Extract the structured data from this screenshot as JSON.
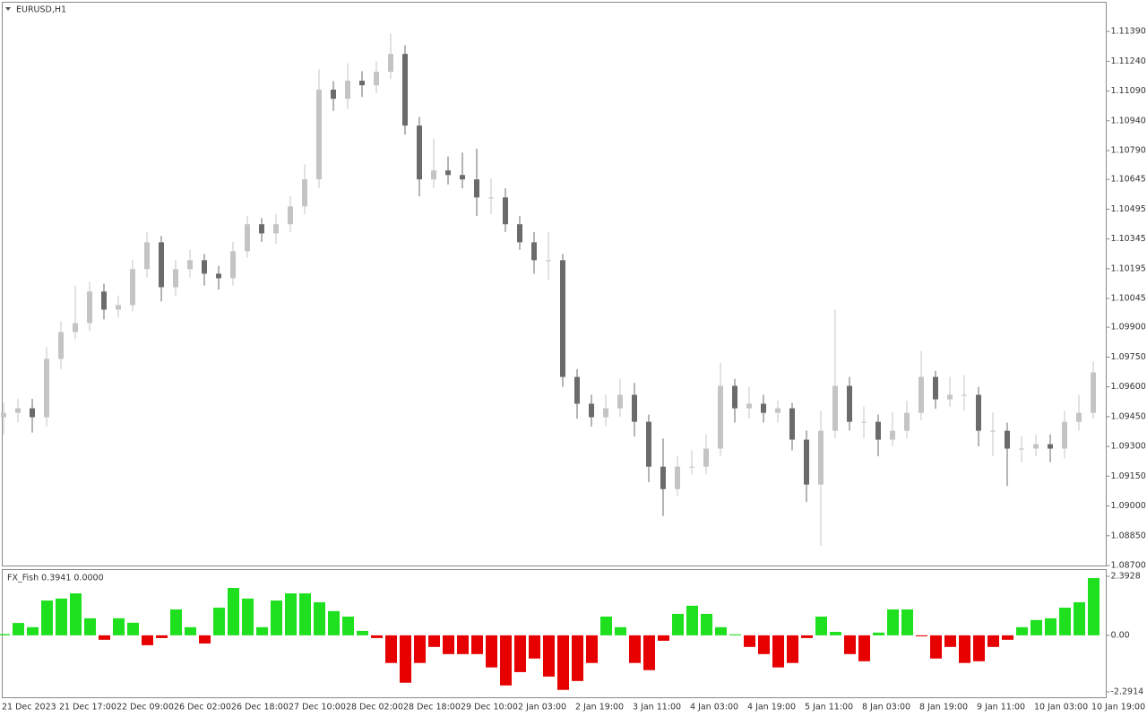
{
  "chart_data": [
    {
      "type": "candlestick",
      "title": "EURUSD,H1",
      "categories": [
        "21 Dec 2023",
        null,
        null,
        null,
        "21 Dec 17:00",
        null,
        null,
        null,
        "22 Dec 09:00",
        null,
        null,
        null,
        "26 Dec 02:00",
        null,
        null,
        null,
        "26 Dec 18:00",
        null,
        null,
        null,
        "27 Dec 10:00",
        null,
        null,
        null,
        "28 Dec 02:00",
        null,
        null,
        null,
        "28 Dec 18:00",
        null,
        null,
        null,
        "29 Dec 10:00",
        null,
        null,
        null,
        "2 Jan 03:00",
        null,
        null,
        null,
        "2 Jan 19:00",
        null,
        null,
        null,
        "3 Jan 11:00",
        null,
        null,
        null,
        "4 Jan 03:00",
        null,
        null,
        null,
        "4 Jan 19:00",
        null,
        null,
        null,
        "5 Jan 11:00",
        null,
        null,
        null,
        "8 Jan 03:00",
        null,
        null,
        null,
        "8 Jan 19:00",
        null,
        null,
        null,
        "9 Jan 11:00",
        null,
        null,
        null,
        "10 Jan 03:00",
        null,
        null,
        null,
        "10 Jan 19:00"
      ],
      "open": [
        1.09447,
        1.09469,
        1.09492,
        1.09447,
        1.09741,
        1.09876,
        1.09921,
        1.1008,
        1.09989,
        1.10012,
        1.10193,
        1.10328,
        1.10102,
        1.10193,
        1.10238,
        1.1017,
        1.10147,
        1.10283,
        1.10419,
        1.10373,
        1.10419,
        1.10509,
        1.10645,
        1.11097,
        1.11051,
        1.11142,
        1.11119,
        1.11187,
        1.11277,
        1.10916,
        1.10645,
        1.1069,
        1.10667,
        1.10645,
        1.10554,
        1.10554,
        1.10419,
        1.10328,
        1.10238,
        1.10238,
        1.0965,
        1.09515,
        1.09447,
        1.09492,
        1.0956,
        1.09424,
        1.09198,
        1.09085,
        1.09198,
        1.09198,
        1.09289,
        1.09605,
        1.09492,
        1.09515,
        1.09469,
        1.09492,
        1.09334,
        1.09108,
        1.09379,
        1.09605,
        1.09424,
        1.09424,
        1.09334,
        1.09379,
        1.09469,
        1.0965,
        1.09537,
        1.0956,
        1.0956,
        1.09379,
        1.09379,
        1.09289,
        1.09289,
        1.09311,
        1.09289,
        1.09424,
        1.09469
      ],
      "high": [
        1.0952,
        1.0954,
        1.0954,
        1.098,
        1.0993,
        1.1011,
        1.1013,
        1.1012,
        1.1006,
        1.1024,
        1.1038,
        1.1036,
        1.1024,
        1.1029,
        1.1027,
        1.1021,
        1.1033,
        1.1046,
        1.1045,
        1.1047,
        1.1056,
        1.1072,
        1.112,
        1.1114,
        1.1123,
        1.1119,
        1.1124,
        1.1138,
        1.1132,
        1.1096,
        1.1085,
        1.1076,
        1.1078,
        1.108,
        1.1065,
        1.106,
        1.1046,
        1.1038,
        1.1038,
        1.1027,
        1.0969,
        1.0956,
        1.0956,
        1.0964,
        1.0962,
        1.0946,
        1.0934,
        1.0925,
        1.0928,
        1.0936,
        1.0972,
        1.0964,
        1.096,
        1.0956,
        1.0953,
        1.0952,
        1.0938,
        1.0948,
        1.0999,
        1.0965,
        1.095,
        1.0946,
        1.0947,
        1.0953,
        1.0978,
        1.0968,
        1.0965,
        1.0966,
        1.096,
        1.0947,
        1.0942,
        1.0935,
        1.0936,
        1.0936,
        1.0948,
        1.0956,
        1.0973
      ],
      "low": [
        1.0936,
        1.0942,
        1.0937,
        1.094,
        1.0969,
        1.0984,
        1.0988,
        1.0994,
        1.0995,
        1.0998,
        1.1015,
        1.1003,
        1.1006,
        1.1015,
        1.1011,
        1.1009,
        1.1011,
        1.1025,
        1.1033,
        1.1032,
        1.1038,
        1.1047,
        1.106,
        1.1099,
        1.11,
        1.1106,
        1.1108,
        1.1115,
        1.1087,
        1.1056,
        1.106,
        1.1062,
        1.106,
        1.1046,
        1.1047,
        1.1038,
        1.1029,
        1.1017,
        1.1014,
        1.096,
        1.0944,
        1.094,
        1.094,
        1.0945,
        1.0935,
        1.0912,
        1.0895,
        1.0905,
        1.0916,
        1.0916,
        1.0925,
        1.0942,
        1.0944,
        1.0942,
        1.0942,
        1.0928,
        1.0902,
        1.088,
        1.0934,
        1.0938,
        1.0934,
        1.0925,
        1.093,
        1.0934,
        1.0943,
        1.0949,
        1.095,
        1.0948,
        1.093,
        1.0925,
        1.091,
        1.0922,
        1.0925,
        1.0922,
        1.0924,
        1.0938,
        1.0944
      ],
      "close": [
        1.09469,
        1.09492,
        1.09447,
        1.09741,
        1.09876,
        1.09921,
        1.1008,
        1.09989,
        1.10012,
        1.10193,
        1.10328,
        1.10102,
        1.10193,
        1.10238,
        1.1017,
        1.10147,
        1.10283,
        1.10419,
        1.10373,
        1.10419,
        1.10509,
        1.10645,
        1.11097,
        1.11051,
        1.11142,
        1.11119,
        1.11187,
        1.11277,
        1.10916,
        1.10645,
        1.1069,
        1.10667,
        1.10645,
        1.10554,
        1.10554,
        1.10419,
        1.10328,
        1.10238,
        1.10238,
        1.0965,
        1.09515,
        1.09447,
        1.09492,
        1.0956,
        1.09424,
        1.09198,
        1.09085,
        1.09198,
        1.09198,
        1.09289,
        1.09605,
        1.09492,
        1.09515,
        1.09469,
        1.09492,
        1.09334,
        1.09108,
        1.09379,
        1.09605,
        1.09424,
        1.09424,
        1.09334,
        1.09379,
        1.09469,
        1.0965,
        1.09537,
        1.0956,
        1.0956,
        1.09379,
        1.09379,
        1.09289,
        1.09289,
        1.09311,
        1.09289,
        1.09424,
        1.09469,
        1.09673
      ],
      "up_color": "#c4c4c4",
      "down_color": "#6b6b6b",
      "ylim": [
        1.087,
        1.11535
      ],
      "yticks": [
        {
          "value": 1.1139,
          "label": "1.11390"
        },
        {
          "value": 1.1124,
          "label": "1.11240"
        },
        {
          "value": 1.1109,
          "label": "1.11090"
        },
        {
          "value": 1.1094,
          "label": "1.10940"
        },
        {
          "value": 1.1079,
          "label": "1.10790"
        },
        {
          "value": 1.10645,
          "label": "1.10645"
        },
        {
          "value": 1.10495,
          "label": "1.10495"
        },
        {
          "value": 1.10345,
          "label": "1.10345"
        },
        {
          "value": 1.10195,
          "label": "1.10195"
        },
        {
          "value": 1.10045,
          "label": "1.10045"
        },
        {
          "value": 1.099,
          "label": "1.09900"
        },
        {
          "value": 1.0975,
          "label": "1.09750"
        },
        {
          "value": 1.096,
          "label": "1.09600"
        },
        {
          "value": 1.0945,
          "label": "1.09450"
        },
        {
          "value": 1.093,
          "label": "1.09300"
        },
        {
          "value": 1.0915,
          "label": "1.09150"
        },
        {
          "value": 1.09,
          "label": "1.09000"
        },
        {
          "value": 1.0885,
          "label": "1.08850"
        },
        {
          "value": 1.087,
          "label": "1.08700"
        }
      ]
    },
    {
      "type": "histogram",
      "title": "FX_Fish 0.3941 0.0000",
      "values": [
        0.05,
        0.5,
        0.33,
        1.41,
        1.49,
        1.7,
        0.69,
        -0.18,
        0.69,
        0.51,
        -0.4,
        -0.11,
        1.05,
        0.33,
        -0.33,
        1.12,
        1.92,
        1.49,
        0.33,
        1.41,
        1.7,
        1.7,
        1.34,
        0.98,
        0.76,
        0.18,
        -0.11,
        -1.12,
        -1.92,
        -1.12,
        -0.47,
        -0.76,
        -0.76,
        -0.76,
        -1.3,
        -2.03,
        -1.49,
        -0.94,
        -1.67,
        -2.21,
        -1.85,
        -1.12,
        0.76,
        0.33,
        -1.12,
        -1.41,
        -0.22,
        0.87,
        1.2,
        0.87,
        0.33,
        0.04,
        -0.47,
        -0.76,
        -1.3,
        -1.12,
        -0.11,
        0.76,
        0.14,
        -0.76,
        -1.05,
        0.11,
        1.05,
        1.05,
        -0.04,
        -0.94,
        -0.47,
        -1.12,
        -1.05,
        -0.47,
        -0.18,
        0.33,
        0.62,
        0.69,
        1.12,
        1.34,
        2.32
      ],
      "positive_color": "#1fe01f",
      "negative_color": "#e60000",
      "ylim": [
        -2.51,
        2.61
      ],
      "yticks": [
        2.3928,
        {
          "value": 0,
          "label": "0.00"
        },
        -2.2914
      ]
    }
  ]
}
